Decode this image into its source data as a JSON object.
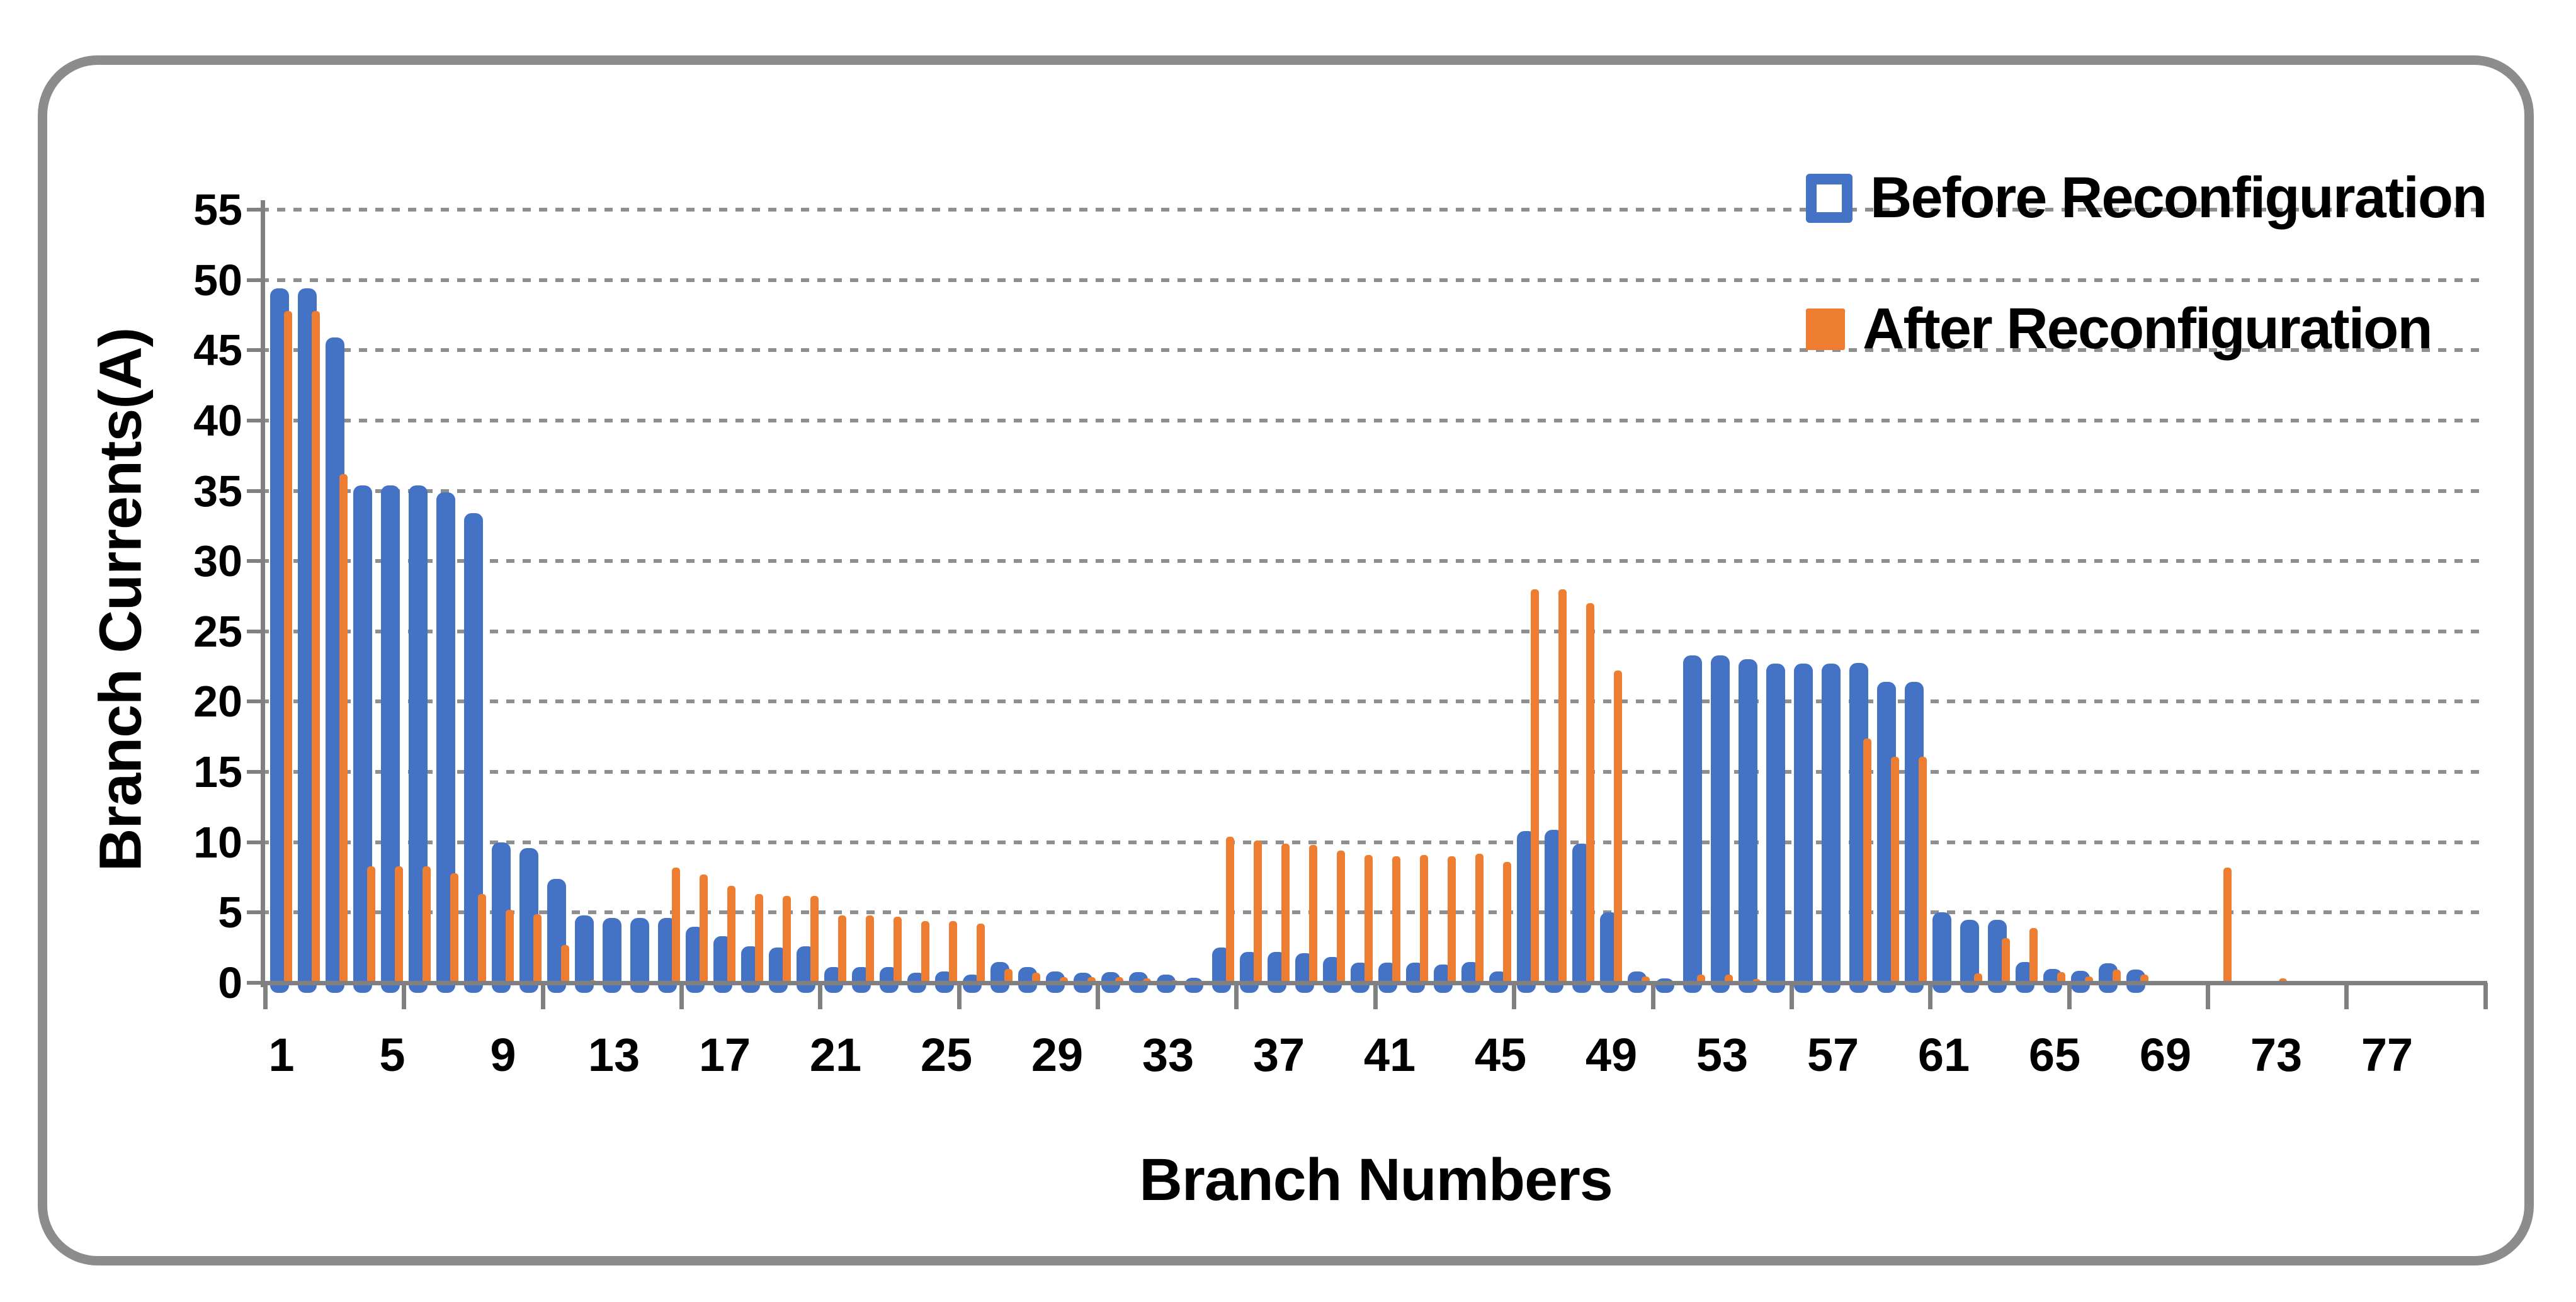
{
  "chart_data": {
    "type": "bar",
    "title": "",
    "xlabel": "Branch Numbers",
    "ylabel": "Branch Currents(A)",
    "ylim": [
      0,
      55
    ],
    "ytick_step": 5,
    "yticks": [
      0,
      5,
      10,
      15,
      20,
      25,
      30,
      35,
      40,
      45,
      50,
      55
    ],
    "xticks": [
      1,
      5,
      9,
      13,
      17,
      21,
      25,
      29,
      33,
      37,
      41,
      45,
      49,
      53,
      57,
      61,
      65,
      69,
      73,
      77
    ],
    "categories_range": [
      1,
      78
    ],
    "grid": "dotted-horizontal",
    "legend_position": "top-right",
    "colors": {
      "before": "#4472C4",
      "after": "#ED7D31",
      "axis": "#808080",
      "gridline": "#8f8f8f",
      "frame": "#8c8c8c"
    },
    "series": [
      {
        "name": "Before Reconfiguration",
        "color": "#4472C4",
        "marker": "hollow-square",
        "values": [
          49.4,
          49.4,
          45.9,
          35.4,
          35.4,
          35.4,
          34.9,
          33.4,
          10.0,
          9.6,
          7.4,
          4.8,
          4.6,
          4.6,
          4.6,
          4.0,
          3.3,
          2.6,
          2.5,
          2.6,
          1.1,
          1.1,
          1.1,
          0.7,
          0.8,
          0.6,
          1.5,
          1.1,
          0.8,
          0.7,
          0.75,
          0.75,
          0.6,
          0.35,
          2.5,
          2.2,
          2.2,
          2.1,
          1.85,
          1.45,
          1.45,
          1.45,
          1.3,
          1.5,
          0.8,
          10.8,
          10.9,
          9.9,
          5.0,
          0.8,
          0.3,
          23.3,
          23.3,
          23.0,
          22.7,
          22.7,
          22.7,
          22.75,
          21.4,
          21.4,
          5.0,
          4.5,
          4.5,
          1.5,
          1.0,
          0.85,
          1.4,
          0.95,
          0,
          0,
          0,
          0,
          0,
          0,
          0,
          0,
          0,
          0
        ]
      },
      {
        "name": "After Reconfiguration",
        "color": "#ED7D31",
        "marker": "solid-square",
        "values": [
          47.8,
          47.8,
          36.2,
          8.3,
          8.3,
          8.3,
          7.8,
          6.3,
          5.2,
          4.9,
          2.7,
          0.2,
          0,
          0,
          8.2,
          7.7,
          6.9,
          6.3,
          6.2,
          6.2,
          4.8,
          4.8,
          4.7,
          4.4,
          4.4,
          4.2,
          1.0,
          0.7,
          0.4,
          0.4,
          0.4,
          0.3,
          0.2,
          0,
          10.4,
          10.1,
          9.9,
          9.8,
          9.4,
          9.1,
          9.0,
          9.1,
          9.0,
          9.2,
          8.6,
          28.0,
          28.0,
          27.0,
          22.2,
          0.45,
          0,
          0.6,
          0.6,
          0.25,
          0,
          0,
          0,
          17.4,
          16.1,
          16.1,
          0,
          0.65,
          3.2,
          3.9,
          0.75,
          0.45,
          0.95,
          0.6,
          0,
          0,
          8.2,
          0,
          0.3,
          0,
          0,
          0,
          0,
          0
        ]
      }
    ]
  }
}
